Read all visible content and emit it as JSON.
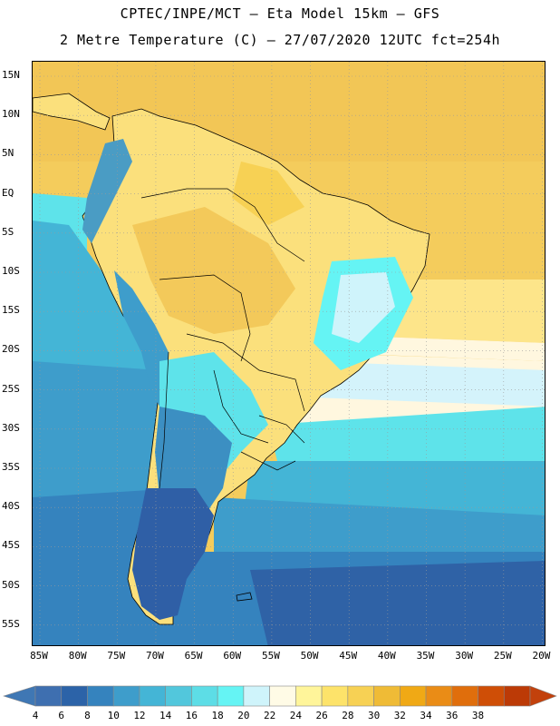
{
  "header": {
    "title_line1": "CPTEC/INPE/MCT –  Eta Model 15km – GFS",
    "title_line2": "2 Metre Temperature (C) – 27/07/2020 12UTC fct=254h"
  },
  "axes": {
    "lat_labels": [
      "15N",
      "10N",
      "5N",
      "EQ",
      "5S",
      "10S",
      "15S",
      "20S",
      "25S",
      "30S",
      "35S",
      "40S",
      "45S",
      "50S",
      "55S"
    ],
    "lon_labels": [
      "85W",
      "80W",
      "75W",
      "70W",
      "65W",
      "60W",
      "55W",
      "50W",
      "45W",
      "40W",
      "35W",
      "30W",
      "25W",
      "20W"
    ]
  },
  "colorbar": {
    "values": [
      "4",
      "6",
      "8",
      "10",
      "12",
      "14",
      "16",
      "18",
      "20",
      "22",
      "24",
      "26",
      "28",
      "30",
      "32",
      "34",
      "36",
      "38"
    ],
    "colors": [
      "#3e6fb0",
      "#2c63a8",
      "#3583be",
      "#3e9dcb",
      "#44b5d6",
      "#52c7dc",
      "#5ddde6",
      "#65f4f4",
      "#cff4fb",
      "#fffbe6",
      "#fff59a",
      "#fde36a",
      "#f7d154",
      "#efbb36",
      "#f0a915",
      "#ea8c16",
      "#e06e0c",
      "#cf4e06",
      "#bc3a06"
    ],
    "left_arrow_color": "#3f77b4",
    "right_arrow_color": "#c2410c"
  },
  "map": {
    "ocean_colors": {
      "cold": "#2f62a6",
      "cool": "#3bb0d4",
      "mild": "#5ee3ea",
      "warm_pale": "#d4f3fb",
      "cream": "#fff7df",
      "yellow": "#fde58a",
      "gold": "#f4cc5c"
    },
    "land_colors": {
      "hot": "#f3c95a",
      "warm": "#fbe07c",
      "andes": "#4a9cc4",
      "patagonia": "#2f5fa6",
      "southern_cone": "#3c8fc2"
    }
  }
}
